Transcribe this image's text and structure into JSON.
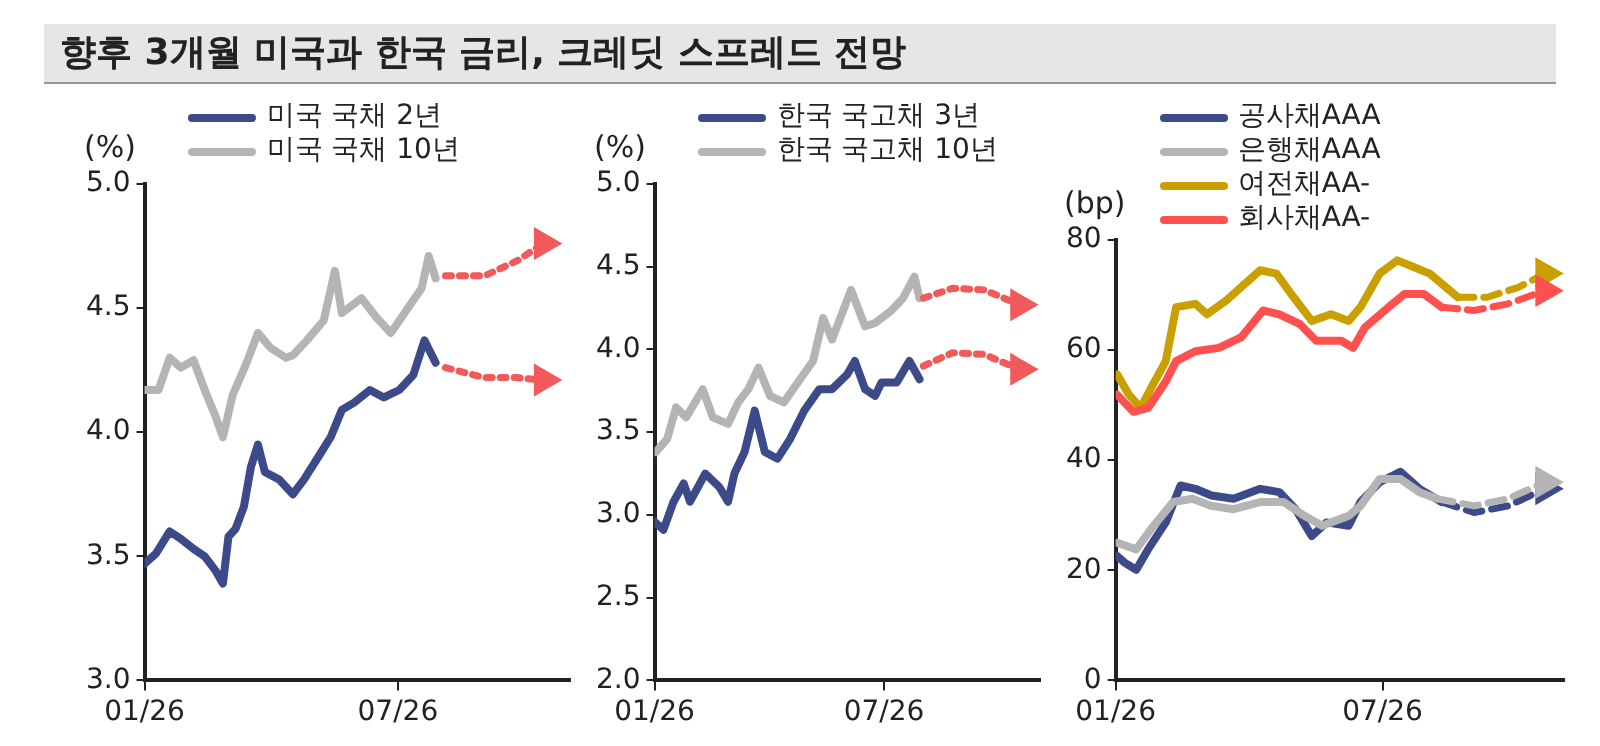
{
  "chart_data": [
    {
      "type": "line",
      "title": "향후 3개월 미국과 한국 금리, 크레딧 스프레드 전망",
      "ylabel": "(%)",
      "legend": "top",
      "xlim": [
        "2026-01-01",
        "2026-11-01"
      ],
      "xticks": [
        {
          "value": "2026-01-01",
          "label": "01/26"
        },
        {
          "value": "2026-07-01",
          "label": "07/26"
        }
      ],
      "ylim": [
        3,
        5
      ],
      "yticks": [
        {
          "value": 3,
          "label": "3.0"
        },
        {
          "value": 3.5,
          "label": "3.5"
        },
        {
          "value": 4,
          "label": "4.0"
        },
        {
          "value": 4.5,
          "label": "4.5"
        },
        {
          "value": 5,
          "label": "5.0"
        }
      ],
      "series": [
        {
          "name": "미국 국채 2년",
          "color": "#3d4a8a",
          "x": [
            "2026-01-01",
            "2026-01-09",
            "2026-01-19",
            "2026-01-27",
            "2026-02-05",
            "2026-02-13",
            "2026-02-21",
            "2026-02-26",
            "2026-03-02",
            "2026-03-07",
            "2026-03-13",
            "2026-03-18",
            "2026-03-23",
            "2026-03-28",
            "2026-04-07",
            "2026-04-17",
            "2026-04-25",
            "2026-05-04",
            "2026-05-14",
            "2026-05-22",
            "2026-05-31",
            "2026-06-11",
            "2026-06-21",
            "2026-07-02",
            "2026-07-12",
            "2026-07-20",
            "2026-07-28"
          ],
          "values": [
            3.47,
            3.51,
            3.6,
            3.57,
            3.53,
            3.5,
            3.44,
            3.39,
            3.58,
            3.61,
            3.7,
            3.86,
            3.95,
            3.84,
            3.81,
            3.75,
            3.81,
            3.89,
            3.98,
            4.09,
            4.12,
            4.17,
            4.14,
            4.17,
            4.23,
            4.37,
            4.28
          ]
        },
        {
          "name": "미국 국채 10년",
          "color": "#b4b4b4",
          "x": [
            "2026-01-01",
            "2026-01-11",
            "2026-01-19",
            "2026-01-27",
            "2026-02-05",
            "2026-02-13",
            "2026-02-21",
            "2026-02-26",
            "2026-03-05",
            "2026-03-15",
            "2026-03-23",
            "2026-04-01",
            "2026-04-12",
            "2026-04-17",
            "2026-04-27",
            "2026-05-09",
            "2026-05-17",
            "2026-05-22",
            "2026-06-05",
            "2026-06-16",
            "2026-06-26",
            "2026-07-07",
            "2026-07-18",
            "2026-07-23",
            "2026-07-28"
          ],
          "values": [
            4.17,
            4.17,
            4.3,
            4.26,
            4.29,
            4.17,
            4.06,
            3.98,
            4.15,
            4.28,
            4.4,
            4.34,
            4.3,
            4.31,
            4.37,
            4.45,
            4.65,
            4.48,
            4.54,
            4.46,
            4.4,
            4.49,
            4.58,
            4.71,
            4.62
          ]
        },
        {
          "color": "#f05a5a",
          "line_style": "dotted",
          "x": [
            "2026-08-04",
            "2026-09-01",
            "2026-09-24",
            "2026-10-13"
          ],
          "values": [
            4.26,
            4.22,
            4.22,
            4.21
          ]
        },
        {
          "color": "#f05a5a",
          "line_style": "dotted",
          "x": [
            "2026-08-04",
            "2026-09-01",
            "2026-09-24",
            "2026-10-13"
          ],
          "values": [
            4.63,
            4.63,
            4.69,
            4.76
          ]
        }
      ]
    },
    {
      "type": "line",
      "ylabel": "(%)",
      "legend": "top",
      "xlim": [
        "2026-01-01",
        "2026-11-01"
      ],
      "xticks": [
        {
          "value": "2026-01-01",
          "label": "01/26"
        },
        {
          "value": "2026-07-01",
          "label": "07/26"
        }
      ],
      "ylim": [
        2,
        5
      ],
      "yticks": [
        {
          "value": 2,
          "label": "2.0"
        },
        {
          "value": 2.5,
          "label": "2.5"
        },
        {
          "value": 3,
          "label": "3.0"
        },
        {
          "value": 3.5,
          "label": "3.5"
        },
        {
          "value": 4,
          "label": "4.0"
        },
        {
          "value": 4.5,
          "label": "4.5"
        },
        {
          "value": 5,
          "label": "5.0"
        }
      ],
      "series": [
        {
          "name": "한국 국고채 3년",
          "color": "#3d4a8a",
          "x": [
            "2026-01-01",
            "2026-01-08",
            "2026-01-16",
            "2026-01-24",
            "2026-01-29",
            "2026-02-10",
            "2026-02-21",
            "2026-02-28",
            "2026-03-05",
            "2026-03-13",
            "2026-03-21",
            "2026-03-29",
            "2026-04-08",
            "2026-04-18",
            "2026-04-29",
            "2026-05-11",
            "2026-05-21",
            "2026-06-02",
            "2026-06-08",
            "2026-06-16",
            "2026-06-24",
            "2026-06-29",
            "2026-07-11",
            "2026-07-21",
            "2026-07-29"
          ],
          "values": [
            2.96,
            2.91,
            3.08,
            3.19,
            3.08,
            3.25,
            3.17,
            3.08,
            3.25,
            3.38,
            3.63,
            3.38,
            3.34,
            3.46,
            3.63,
            3.76,
            3.76,
            3.85,
            3.93,
            3.76,
            3.72,
            3.8,
            3.8,
            3.93,
            3.82
          ]
        },
        {
          "name": "한국 국고채 10년",
          "color": "#b4b4b4",
          "x": [
            "2026-01-02",
            "2026-01-11",
            "2026-01-18",
            "2026-01-26",
            "2026-02-08",
            "2026-02-16",
            "2026-02-28",
            "2026-03-08",
            "2026-03-16",
            "2026-03-24",
            "2026-04-02",
            "2026-04-13",
            "2026-04-24",
            "2026-05-06",
            "2026-05-14",
            "2026-05-21",
            "2026-06-05",
            "2026-06-16",
            "2026-06-24",
            "2026-07-06",
            "2026-07-16",
            "2026-07-25",
            "2026-07-29"
          ],
          "values": [
            3.38,
            3.46,
            3.65,
            3.59,
            3.76,
            3.59,
            3.55,
            3.68,
            3.76,
            3.89,
            3.72,
            3.68,
            3.8,
            3.93,
            4.19,
            4.06,
            4.36,
            4.14,
            4.16,
            4.23,
            4.31,
            4.44,
            4.31
          ]
        },
        {
          "color": "#f05a5a",
          "line_style": "dotted",
          "x": [
            "2026-08-01",
            "2026-08-24",
            "2026-09-18",
            "2026-10-16"
          ],
          "values": [
            3.9,
            3.98,
            3.97,
            3.88
          ]
        },
        {
          "color": "#f05a5a",
          "line_style": "dotted",
          "x": [
            "2026-08-01",
            "2026-08-24",
            "2026-09-18",
            "2026-10-16"
          ],
          "values": [
            4.31,
            4.37,
            4.36,
            4.27
          ]
        }
      ]
    },
    {
      "type": "line",
      "ylabel": "(bp)",
      "legend": "top",
      "xlim": [
        "2026-01-01",
        "2026-11-01"
      ],
      "xticks": [
        {
          "value": "2026-01-01",
          "label": "01/26"
        },
        {
          "value": "2026-07-01",
          "label": "07/26"
        }
      ],
      "ylim": [
        0,
        80
      ],
      "yticks": [
        0,
        20,
        40,
        60,
        80
      ],
      "series": [
        {
          "name": "공사채AAA",
          "color": "#3d4a8a",
          "x": [
            "2026-01-02",
            "2026-01-07",
            "2026-01-15",
            "2026-01-23",
            "2026-02-04",
            "2026-02-14",
            "2026-02-24",
            "2026-03-07",
            "2026-03-22",
            "2026-04-09",
            "2026-04-22",
            "2026-05-03",
            "2026-05-14",
            "2026-05-24",
            "2026-06-08",
            "2026-06-16",
            "2026-06-29",
            "2026-07-13",
            "2026-07-26",
            "2026-08-10"
          ],
          "values": [
            22.6,
            21.4,
            20.1,
            23.8,
            28.7,
            35.4,
            34.8,
            33.6,
            33,
            34.8,
            34.2,
            31.1,
            26.2,
            28.7,
            28.1,
            32.4,
            36,
            37.9,
            34.8,
            32.4
          ]
        },
        {
          "name": "은행채AAA",
          "color": "#b4b4b4",
          "x": [
            "2026-01-02",
            "2026-01-15",
            "2026-01-25",
            "2026-02-09",
            "2026-02-22",
            "2026-03-07",
            "2026-03-22",
            "2026-04-09",
            "2026-04-25",
            "2026-05-09",
            "2026-05-21",
            "2026-06-08",
            "2026-06-16",
            "2026-06-29",
            "2026-07-13",
            "2026-07-26",
            "2026-08-07"
          ],
          "values": [
            25,
            23.8,
            27.5,
            32.4,
            33,
            31.7,
            31.1,
            32.4,
            32.4,
            29.9,
            28.1,
            29.9,
            31.7,
            36.6,
            36.6,
            34.2,
            33
          ]
        },
        {
          "name": "여전채AA-",
          "color": "#c9a000",
          "x": [
            "2026-01-02",
            "2026-01-10",
            "2026-01-18",
            "2026-01-25",
            "2026-02-04",
            "2026-02-11",
            "2026-02-24",
            "2026-03-04",
            "2026-03-17",
            "2026-03-27",
            "2026-04-09",
            "2026-04-20",
            "2026-04-30",
            "2026-05-14",
            "2026-05-27",
            "2026-06-08",
            "2026-06-16",
            "2026-06-29",
            "2026-07-11",
            "2026-07-22",
            "2026-08-02",
            "2026-08-13",
            "2026-08-21"
          ],
          "values": [
            55.6,
            51.9,
            49.5,
            53.1,
            58,
            67.8,
            68.4,
            66.5,
            69,
            71.4,
            74.5,
            73.9,
            70.2,
            65.3,
            66.5,
            65.3,
            67.8,
            73.9,
            76.3,
            75.1,
            73.9,
            71.4,
            69.6
          ]
        },
        {
          "name": "회사채AA-",
          "color": "#ff5050",
          "x": [
            "2026-01-02",
            "2026-01-13",
            "2026-01-23",
            "2026-02-04",
            "2026-02-11",
            "2026-02-24",
            "2026-03-12",
            "2026-03-27",
            "2026-04-11",
            "2026-04-22",
            "2026-05-06",
            "2026-05-17",
            "2026-06-03",
            "2026-06-11",
            "2026-06-19",
            "2026-07-05",
            "2026-07-16",
            "2026-07-29",
            "2026-08-10"
          ],
          "values": [
            51.9,
            48.8,
            49.5,
            54.3,
            58,
            59.8,
            60.4,
            62.3,
            67.2,
            66.5,
            64.7,
            61.7,
            61.7,
            60.4,
            64.1,
            67.8,
            70.2,
            70.2,
            67.8
          ]
        },
        {
          "color": "#3d4a8a",
          "line_style": "dashed",
          "x": [
            "2026-08-10",
            "2026-09-01",
            "2026-09-24",
            "2026-10-19"
          ],
          "values": [
            32.4,
            30.5,
            31.7,
            34.8
          ]
        },
        {
          "color": "#b4b4b4",
          "line_style": "dashed",
          "x": [
            "2026-08-07",
            "2026-09-01",
            "2026-09-24",
            "2026-10-19"
          ],
          "values": [
            33,
            31.7,
            33,
            36
          ]
        },
        {
          "color": "#c9a000",
          "line_style": "dashed",
          "x": [
            "2026-08-21",
            "2026-09-10",
            "2026-10-01",
            "2026-10-19"
          ],
          "values": [
            69.6,
            69.6,
            71.4,
            73.9
          ]
        },
        {
          "color": "#ff5050",
          "line_style": "dashed",
          "x": [
            "2026-08-10",
            "2026-09-01",
            "2026-09-24",
            "2026-10-19"
          ],
          "values": [
            67.8,
            67.2,
            68.4,
            70.8
          ]
        }
      ]
    }
  ]
}
